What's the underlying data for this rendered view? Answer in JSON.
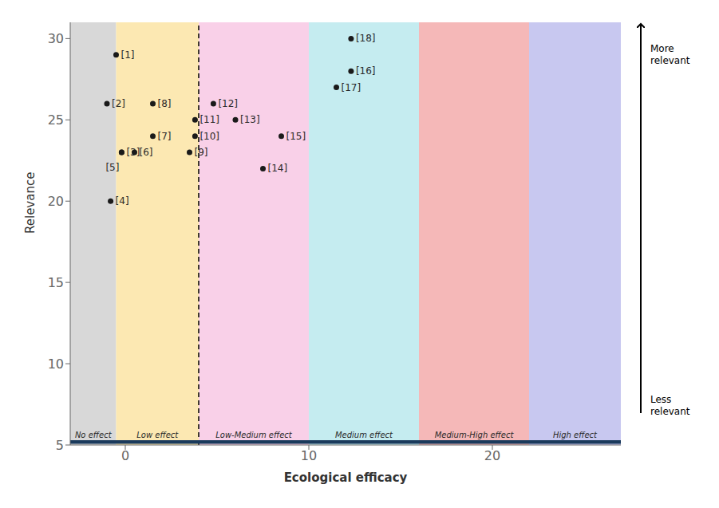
{
  "chart_data": {
    "type": "scatter",
    "xlabel": "Ecological efficacy",
    "ylabel": "Relevance",
    "xlim": [
      -3.0,
      27.0
    ],
    "ylim": [
      5,
      31
    ],
    "xticks": [
      0,
      10,
      20
    ],
    "yticks": [
      5,
      10,
      15,
      20,
      25,
      30
    ],
    "color": "#1a1a1a",
    "text_color": "#2a2a2a",
    "points": [
      {
        "label": "[1]",
        "x": -0.5,
        "y": 29
      },
      {
        "label": "[2]",
        "x": -1.0,
        "y": 26
      },
      {
        "label": "[3]",
        "x": -0.2,
        "y": 23
      },
      {
        "label": "[5]",
        "x": -0.2,
        "y": 23
      },
      {
        "label": "[4]",
        "x": -0.8,
        "y": 20
      },
      {
        "label": "[6]",
        "x": 0.5,
        "y": 23
      },
      {
        "label": "[7]",
        "x": 1.5,
        "y": 24
      },
      {
        "label": "[8]",
        "x": 1.5,
        "y": 26
      },
      {
        "label": "[9]",
        "x": 3.5,
        "y": 23
      },
      {
        "label": "[10]",
        "x": 3.8,
        "y": 24
      },
      {
        "label": "[11]",
        "x": 3.8,
        "y": 25
      },
      {
        "label": "[12]",
        "x": 4.8,
        "y": 26
      },
      {
        "label": "[13]",
        "x": 6.0,
        "y": 25
      },
      {
        "label": "[14]",
        "x": 7.5,
        "y": 22
      },
      {
        "label": "[15]",
        "x": 8.5,
        "y": 24
      },
      {
        "label": "[16]",
        "x": 12.3,
        "y": 28
      },
      {
        "label": "[17]",
        "x": 11.5,
        "y": 27
      },
      {
        "label": "[18]",
        "x": 12.3,
        "y": 30
      }
    ],
    "zones": [
      {
        "x0": -3.0,
        "x1": -0.5,
        "color": "#d8d8d8",
        "label": "No effect"
      },
      {
        "x0": -0.5,
        "x1": 4.0,
        "color": "#fce8b2",
        "label": "Low effect"
      },
      {
        "x0": 4.0,
        "x1": 10.0,
        "color": "#f9d0e8",
        "label": "Low-Medium effect"
      },
      {
        "x0": 10.0,
        "x1": 16.0,
        "color": "#c5ecf0",
        "label": "Medium effect"
      },
      {
        "x0": 16.0,
        "x1": 22.0,
        "color": "#f5b8b8",
        "label": "Medium-High effect"
      },
      {
        "x0": 22.0,
        "x1": 27.0,
        "color": "#c8c8f0",
        "label": "High effect"
      }
    ],
    "reference_line": {
      "x": 4.0,
      "line_style": "dashed",
      "color": "#000000"
    },
    "bottom_bar": {
      "y": 5.18,
      "color": "#1a3a5c"
    },
    "annotations": [
      "More\nrelevant",
      "Less\nrelevant"
    ]
  }
}
